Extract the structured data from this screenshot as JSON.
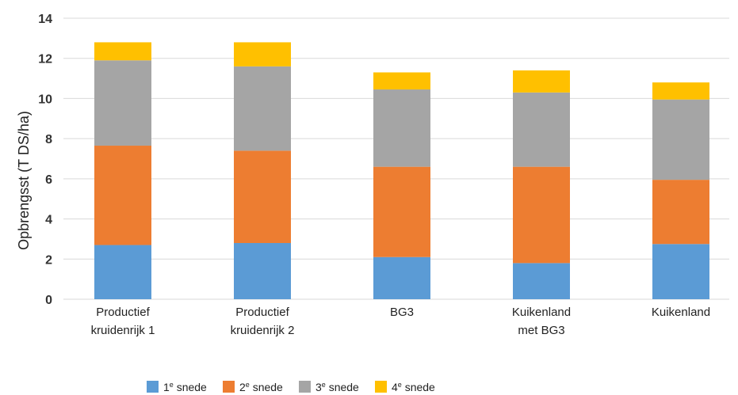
{
  "chart_data": {
    "type": "bar",
    "stacked": true,
    "title": "",
    "xlabel": "",
    "ylabel": "Opbrengsst (T DS/ha)",
    "ylim": [
      0,
      14
    ],
    "yticks": [
      0,
      2,
      4,
      6,
      8,
      10,
      12,
      14
    ],
    "grid": true,
    "legend_position": "bottom",
    "categories": [
      [
        "Productief",
        "kruidenrijk 1"
      ],
      [
        "Productief",
        "kruidenrijk 2"
      ],
      [
        "BG3"
      ],
      [
        "Kuikenland",
        "met BG3"
      ],
      [
        "Kuikenland"
      ]
    ],
    "series": [
      {
        "name": "1e snede",
        "legend_base": "1",
        "legend_sup": "e",
        "legend_rest": " snede",
        "color": "#5b9bd5",
        "values": [
          2.7,
          2.8,
          2.1,
          1.8,
          2.75
        ]
      },
      {
        "name": "2e snede",
        "legend_base": "2",
        "legend_sup": "e",
        "legend_rest": " snede",
        "color": "#ed7d31",
        "values": [
          4.95,
          4.6,
          4.5,
          4.8,
          3.2
        ]
      },
      {
        "name": "3e snede",
        "legend_base": "3",
        "legend_sup": "e",
        "legend_rest": " snede",
        "color": "#a5a5a5",
        "values": [
          4.25,
          4.2,
          3.85,
          3.7,
          4.0
        ]
      },
      {
        "name": "4e snede",
        "legend_base": "4",
        "legend_sup": "e",
        "legend_rest": " snede",
        "color": "#ffc000",
        "values": [
          0.9,
          1.2,
          0.85,
          1.1,
          0.85
        ]
      }
    ]
  }
}
